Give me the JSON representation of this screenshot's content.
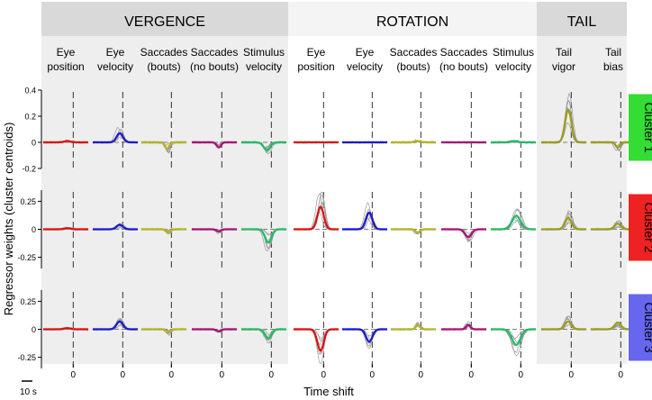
{
  "figure": {
    "y_axis_label": "Regressor weights (cluster centroids)",
    "x_axis_label": "Time shift",
    "scale_bar_label": "10 s"
  },
  "groups": [
    {
      "label": "VERGENCE",
      "color": "#d9d9d9",
      "panel_bg": "#eeeeee"
    },
    {
      "label": "ROTATION",
      "color": "#f4f4f4",
      "panel_bg": "#ffffff"
    },
    {
      "label": "TAIL",
      "color": "#d9d9d9",
      "panel_bg": "#eeeeee"
    }
  ],
  "clusters": [
    {
      "label": "Cluster 1",
      "color": "#33dd33"
    },
    {
      "label": "Cluster 2",
      "color": "#ee2222"
    },
    {
      "label": "Cluster 3",
      "color": "#6666ee"
    }
  ],
  "chart_data": {
    "type": "line",
    "xlabel": "Time shift",
    "ylabel": "Regressor weights (cluster centroids)",
    "x_tick_label": "0",
    "x_range_s": [
      -20,
      10
    ],
    "rows": [
      {
        "cluster": "Cluster 1",
        "ylim": [
          -0.2,
          0.4
        ],
        "yticks": [
          -0.2,
          0,
          0.2,
          0.4
        ],
        "ytick_labels": [
          "-0.2",
          "0",
          "0.2",
          "0.4"
        ]
      },
      {
        "cluster": "Cluster 2",
        "ylim": [
          -0.35,
          0.35
        ],
        "yticks": [
          -0.25,
          0,
          0.25
        ],
        "ytick_labels": [
          "-0.25",
          "0",
          "0.25"
        ]
      },
      {
        "cluster": "Cluster 3",
        "ylim": [
          -0.35,
          0.35
        ],
        "yticks": [
          -0.25,
          0,
          0.25
        ],
        "ytick_labels": [
          "-0.25",
          "0",
          "0.25"
        ]
      }
    ],
    "columns": [
      {
        "group": "VERGENCE",
        "title1": "Eye",
        "title2": "position",
        "color": "#dd1111",
        "peaks": [
          {
            "t": -4,
            "h": 0.01,
            "w": 3
          },
          {
            "t": -4,
            "h": 0.01,
            "w": 3
          },
          {
            "t": -4,
            "h": 0.01,
            "w": 3
          }
        ]
      },
      {
        "group": "VERGENCE",
        "title1": "Eye",
        "title2": "velocity",
        "color": "#1a1acc",
        "peaks": [
          {
            "t": -2,
            "h": 0.07,
            "w": 3
          },
          {
            "t": -2,
            "h": 0.04,
            "w": 3
          },
          {
            "t": -2,
            "h": 0.07,
            "w": 3
          }
        ]
      },
      {
        "group": "VERGENCE",
        "title1": "Saccades",
        "title2": "(bouts)",
        "color": "#b5b520",
        "peaks": [
          {
            "t": -3,
            "h": -0.05,
            "w": 2
          },
          {
            "t": -2,
            "h": -0.03,
            "w": 2
          },
          {
            "t": -2,
            "h": -0.03,
            "w": 2
          }
        ]
      },
      {
        "group": "VERGENCE",
        "title1": "Saccades",
        "title2": "(no bouts)",
        "color": "#aa1177",
        "peaks": [
          {
            "t": -2,
            "h": -0.04,
            "w": 2
          },
          {
            "t": -2,
            "h": -0.02,
            "w": 2
          },
          {
            "t": -2,
            "h": -0.02,
            "w": 2
          }
        ]
      },
      {
        "group": "VERGENCE",
        "title1": "Stimulus",
        "title2": "velocity",
        "color": "#22bb66",
        "peaks": [
          {
            "t": -3,
            "h": -0.06,
            "w": 3
          },
          {
            "t": -2,
            "h": -0.12,
            "w": 3
          },
          {
            "t": -2,
            "h": -0.08,
            "w": 3
          }
        ]
      },
      {
        "group": "ROTATION",
        "title1": "Eye",
        "title2": "position",
        "color": "#dd1111",
        "peaks": [
          {
            "t": -4,
            "h": 0.0,
            "w": 3
          },
          {
            "t": -2,
            "h": 0.2,
            "w": 3
          },
          {
            "t": -2,
            "h": -0.19,
            "w": 3
          }
        ]
      },
      {
        "group": "ROTATION",
        "title1": "Eye",
        "title2": "velocity",
        "color": "#1a1acc",
        "peaks": [
          {
            "t": -4,
            "h": 0.0,
            "w": 3
          },
          {
            "t": -2,
            "h": 0.15,
            "w": 3
          },
          {
            "t": -2,
            "h": -0.11,
            "w": 3
          }
        ]
      },
      {
        "group": "ROTATION",
        "title1": "Saccades",
        "title2": "(bouts)",
        "color": "#b5b520",
        "peaks": [
          {
            "t": -2,
            "h": 0.01,
            "w": 3
          },
          {
            "t": -2,
            "h": -0.03,
            "w": 2
          },
          {
            "t": -2,
            "h": 0.04,
            "w": 2
          }
        ]
      },
      {
        "group": "ROTATION",
        "title1": "Saccades",
        "title2": "(no bouts)",
        "color": "#aa1177",
        "peaks": [
          {
            "t": -2,
            "h": 0.0,
            "w": 3
          },
          {
            "t": -2,
            "h": -0.07,
            "w": 3
          },
          {
            "t": -2,
            "h": 0.04,
            "w": 2
          }
        ]
      },
      {
        "group": "ROTATION",
        "title1": "Stimulus",
        "title2": "velocity",
        "color": "#22bb66",
        "peaks": [
          {
            "t": -4,
            "h": 0.01,
            "w": 3
          },
          {
            "t": -3,
            "h": 0.12,
            "w": 4
          },
          {
            "t": -3,
            "h": -0.14,
            "w": 4
          }
        ]
      },
      {
        "group": "TAIL",
        "title1": "Tail",
        "title2": "vigor",
        "color": "#9c9c1c",
        "peaks": [
          {
            "t": -2,
            "h": 0.25,
            "w": 3
          },
          {
            "t": -2,
            "h": 0.1,
            "w": 3
          },
          {
            "t": -2,
            "h": 0.07,
            "w": 3
          }
        ]
      },
      {
        "group": "TAIL",
        "title1": "Tail",
        "title2": "bias",
        "color": "#9c9c1c",
        "peaks": [
          {
            "t": -2,
            "h": -0.04,
            "w": 2
          },
          {
            "t": -2,
            "h": 0.05,
            "w": 3
          },
          {
            "t": -2,
            "h": 0.06,
            "w": 3
          }
        ]
      }
    ]
  }
}
